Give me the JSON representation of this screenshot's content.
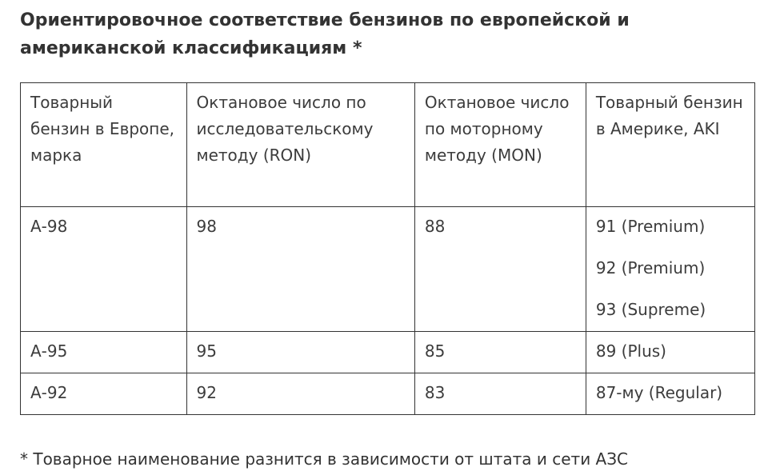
{
  "header": {
    "title": "Ориентировочное соответствие бензинов по европейской и американской классификациям *"
  },
  "table": {
    "columns": [
      "Товарный бензин в Европе, марка",
      "Октановое число по исследовательскому методу (RON)",
      "Октановое число по моторному методу (MON)",
      "Товарный бензин в Америке, AKI"
    ],
    "rows": [
      [
        "А-98",
        "98",
        "88",
        [
          "91 (Premium)",
          "92 (Premium)",
          "93 (Supreme)"
        ]
      ],
      [
        "А-95",
        "95",
        "85",
        [
          "89 (Plus)"
        ]
      ],
      [
        "А-92",
        "92",
        "83",
        [
          "87-му (Regular)"
        ]
      ]
    ]
  },
  "footnote": "* Товарное наименование разнится в зависимости от штата и сети АЗС"
}
